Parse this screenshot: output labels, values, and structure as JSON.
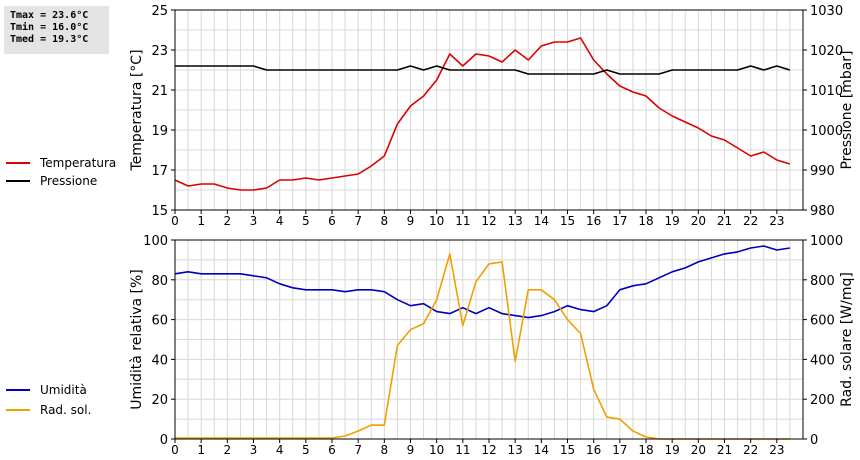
{
  "stats": {
    "tmax": "Tmax = 23.6°C",
    "tmin": "Tmin = 16.0°C",
    "tmed": "Tmed = 19.3°C"
  },
  "legend_top": [
    {
      "label": "Temperatura",
      "color": "#dd0000"
    },
    {
      "label": "Pressione",
      "color": "#000000"
    }
  ],
  "legend_bottom": [
    {
      "label": "Umidità",
      "color": "#0000bb"
    },
    {
      "label": "Rad. sol.",
      "color": "#f0a000"
    }
  ],
  "chart_data": [
    {
      "type": "line",
      "ylabel": "Temperatura [°C]",
      "y2label": "Pressione [mbar]",
      "xlim": [
        0,
        24
      ],
      "ylim": [
        15,
        25
      ],
      "y2lim": [
        980,
        1030
      ],
      "xticks": [
        0,
        1,
        2,
        3,
        4,
        5,
        6,
        7,
        8,
        9,
        10,
        11,
        12,
        13,
        14,
        15,
        16,
        17,
        18,
        19,
        20,
        21,
        22,
        23
      ],
      "yticks": [
        15,
        17,
        19,
        21,
        23,
        25
      ],
      "y2ticks": [
        980,
        990,
        1000,
        1010,
        1020,
        1030
      ],
      "grid": true,
      "series": [
        {
          "name": "Temperatura",
          "axis": "left",
          "color": "#dd0000",
          "x": [
            0,
            0.5,
            1,
            1.5,
            2,
            2.5,
            3,
            3.5,
            4,
            4.5,
            5,
            5.5,
            6,
            6.5,
            7,
            7.5,
            8,
            8.5,
            9,
            9.5,
            10,
            10.5,
            11,
            11.5,
            12,
            12.5,
            13,
            13.5,
            14,
            14.5,
            15,
            15.5,
            16,
            16.5,
            17,
            17.5,
            18,
            18.5,
            19,
            19.5,
            20,
            20.5,
            21,
            21.5,
            22,
            22.5,
            23,
            23.5
          ],
          "y": [
            16.5,
            16.2,
            16.3,
            16.3,
            16.1,
            16.0,
            16.0,
            16.1,
            16.5,
            16.5,
            16.6,
            16.5,
            16.6,
            16.7,
            16.8,
            17.2,
            17.7,
            19.3,
            20.2,
            20.7,
            21.5,
            22.8,
            22.2,
            22.8,
            22.7,
            22.4,
            23.0,
            22.5,
            23.2,
            23.4,
            23.4,
            23.6,
            22.5,
            21.8,
            21.2,
            20.9,
            20.7,
            20.1,
            19.7,
            19.4,
            19.1,
            18.7,
            18.5,
            18.1,
            17.7,
            17.9,
            17.5,
            17.3
          ]
        },
        {
          "name": "Pressione",
          "axis": "right",
          "color": "#000000",
          "x": [
            0,
            0.5,
            1,
            1.5,
            2,
            2.5,
            3,
            3.5,
            4,
            4.5,
            5,
            5.5,
            6,
            6.5,
            7,
            7.5,
            8,
            8.5,
            9,
            9.5,
            10,
            10.5,
            11,
            11.5,
            12,
            12.5,
            13,
            13.5,
            14,
            14.5,
            15,
            15.5,
            16,
            16.5,
            17,
            17.5,
            18,
            18.5,
            19,
            19.5,
            20,
            20.5,
            21,
            21.5,
            22,
            22.5,
            23,
            23.5
          ],
          "y": [
            1016,
            1016,
            1016,
            1016,
            1016,
            1016,
            1016,
            1015,
            1015,
            1015,
            1015,
            1015,
            1015,
            1015,
            1015,
            1015,
            1015,
            1015,
            1016,
            1015,
            1016,
            1015,
            1015,
            1015,
            1015,
            1015,
            1015,
            1014,
            1014,
            1014,
            1014,
            1014,
            1014,
            1015,
            1014,
            1014,
            1014,
            1014,
            1015,
            1015,
            1015,
            1015,
            1015,
            1015,
            1016,
            1015,
            1016,
            1015
          ]
        }
      ]
    },
    {
      "type": "line",
      "ylabel": "Umidità relativa [%]",
      "y2label": "Rad. solare [W/mq]",
      "xlim": [
        0,
        24
      ],
      "ylim": [
        0,
        100
      ],
      "y2lim": [
        0,
        1000
      ],
      "xticks": [
        0,
        1,
        2,
        3,
        4,
        5,
        6,
        7,
        8,
        9,
        10,
        11,
        12,
        13,
        14,
        15,
        16,
        17,
        18,
        19,
        20,
        21,
        22,
        23
      ],
      "yticks": [
        0,
        20,
        40,
        60,
        80,
        100
      ],
      "y2ticks": [
        0,
        200,
        400,
        600,
        800,
        1000
      ],
      "grid": true,
      "series": [
        {
          "name": "Umidità",
          "axis": "left",
          "color": "#0000bb",
          "x": [
            0,
            0.5,
            1,
            1.5,
            2,
            2.5,
            3,
            3.5,
            4,
            4.5,
            5,
            5.5,
            6,
            6.5,
            7,
            7.5,
            8,
            8.5,
            9,
            9.5,
            10,
            10.5,
            11,
            11.5,
            12,
            12.5,
            13,
            13.5,
            14,
            14.5,
            15,
            15.5,
            16,
            16.5,
            17,
            17.5,
            18,
            18.5,
            19,
            19.5,
            20,
            20.5,
            21,
            21.5,
            22,
            22.5,
            23,
            23.5
          ],
          "y": [
            83,
            84,
            83,
            83,
            83,
            83,
            82,
            81,
            78,
            76,
            75,
            75,
            75,
            74,
            75,
            75,
            74,
            70,
            67,
            68,
            64,
            63,
            66,
            63,
            66,
            63,
            62,
            61,
            62,
            64,
            67,
            65,
            64,
            67,
            75,
            77,
            78,
            81,
            84,
            86,
            89,
            91,
            93,
            94,
            96,
            97,
            95,
            96
          ]
        },
        {
          "name": "Rad. sol.",
          "axis": "right",
          "color": "#f0a000",
          "x": [
            0,
            0.5,
            1,
            1.5,
            2,
            2.5,
            3,
            3.5,
            4,
            4.5,
            5,
            5.5,
            6,
            6.5,
            7,
            7.5,
            8,
            8.5,
            9,
            9.5,
            10,
            10.5,
            11,
            11.5,
            12,
            12.5,
            13,
            13.5,
            14,
            14.5,
            15,
            15.5,
            16,
            16.5,
            17,
            17.5,
            18,
            18.5,
            19,
            19.5,
            20,
            20.5,
            21,
            21.5,
            22,
            22.5,
            23,
            23.5
          ],
          "y": [
            5,
            5,
            5,
            5,
            5,
            5,
            5,
            5,
            5,
            5,
            5,
            5,
            5,
            15,
            40,
            70,
            70,
            470,
            550,
            580,
            700,
            930,
            570,
            790,
            880,
            890,
            390,
            750,
            750,
            700,
            600,
            530,
            250,
            110,
            100,
            40,
            10,
            0,
            0,
            0,
            0,
            0,
            0,
            0,
            0,
            0,
            0,
            0
          ]
        }
      ]
    }
  ]
}
